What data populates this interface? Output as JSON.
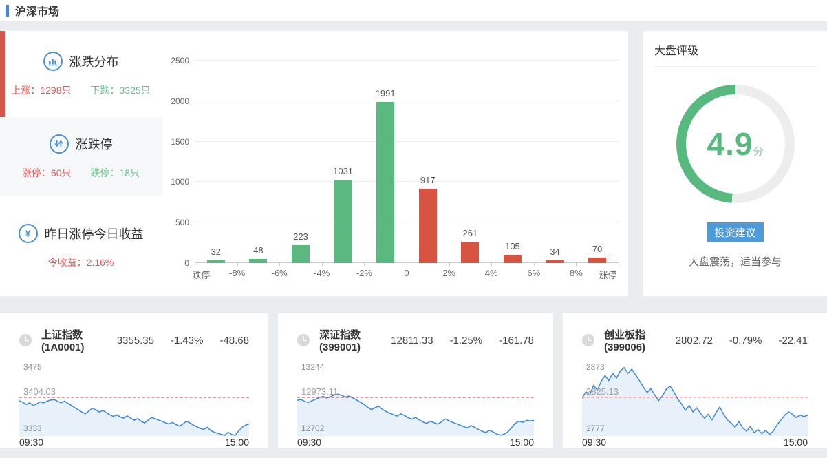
{
  "page": {
    "title": "沪深市场"
  },
  "colors": {
    "accent_blue": "#4a86c8",
    "accent_red": "#d4574e",
    "up_red": "#e15654",
    "down_green": "#67c08b",
    "bar_green": "#5bb87e",
    "bar_red": "#d75442",
    "line_blue": "#3a87d2",
    "area_blue": "#e8f1fa",
    "ref_red": "#d9534f",
    "gauge_green": "#57b97e",
    "gauge_track": "#ededed",
    "button_blue": "#4f9bd9"
  },
  "left_panel": {
    "sections": [
      {
        "icon": "bar-chart-icon",
        "title": "涨跌分布",
        "stats": [
          {
            "text": "上涨：1298只",
            "tone": "up"
          },
          {
            "text": "下跌：3325只",
            "tone": "down"
          }
        ]
      },
      {
        "icon": "up-down-arrows-icon",
        "title": "涨跌停",
        "stats": [
          {
            "text": "涨停：60只",
            "tone": "up"
          },
          {
            "text": "跌停：18只",
            "tone": "down"
          }
        ]
      },
      {
        "icon": "yen-icon",
        "title": "昨日涨停今日收益",
        "stats": [
          {
            "text": "今收益：2.16%",
            "tone": "up"
          }
        ]
      }
    ]
  },
  "rating_panel": {
    "title": "大盘评级",
    "score": "4.9",
    "score_max": 10,
    "score_unit": "分",
    "button_label": "投资建议",
    "advice": "大盘震荡，适当参与"
  },
  "index_cards": [
    {
      "name": "上证指数(1A0001)",
      "price": "3355.35",
      "change_pct": "-1.43%",
      "change_amt": "-48.68"
    },
    {
      "name": "深证指数(399001)",
      "price": "12811.33",
      "change_pct": "-1.25%",
      "change_amt": "-161.78"
    },
    {
      "name": "创业板指(399006)",
      "price": "2802.72",
      "change_pct": "-0.79%",
      "change_amt": "-22.41"
    }
  ],
  "chart_data": [
    {
      "type": "bar",
      "title": "涨跌分布",
      "boundary_labels": [
        "跌停",
        "-8%",
        "-6%",
        "-4%",
        "-2%",
        "0",
        "2%",
        "4%",
        "6%",
        "8%",
        "涨停"
      ],
      "values": [
        32,
        48,
        223,
        1031,
        1991,
        917,
        261,
        105,
        34,
        70
      ],
      "bar_colors": [
        "#5bb87e",
        "#5bb87e",
        "#5bb87e",
        "#5bb87e",
        "#5bb87e",
        "#d75442",
        "#d75442",
        "#d75442",
        "#d75442",
        "#d75442"
      ],
      "ylim": [
        0,
        2500
      ],
      "yticks": [
        0,
        500,
        1000,
        1500,
        2000,
        2500
      ],
      "grid": true,
      "legend": false
    },
    {
      "type": "line",
      "name": "上证指数(1A0001)",
      "ymax": 3475,
      "ymax_label": "3475",
      "ymin": 3333,
      "ymin_label": "3333",
      "ref": 3404.03,
      "ref_label": "3404.03",
      "x_labels": [
        "09:30",
        "15:00"
      ],
      "values": [
        3398,
        3395,
        3391,
        3394,
        3389,
        3392,
        3396,
        3394,
        3397,
        3399,
        3400,
        3397,
        3394,
        3397,
        3393,
        3389,
        3385,
        3381,
        3377,
        3374,
        3379,
        3384,
        3381,
        3377,
        3380,
        3376,
        3372,
        3369,
        3372,
        3368,
        3366,
        3370,
        3366,
        3362,
        3365,
        3360,
        3357,
        3362,
        3367,
        3365,
        3362,
        3360,
        3357,
        3355,
        3358,
        3354,
        3351,
        3355,
        3360,
        3357,
        3353,
        3350,
        3347,
        3345,
        3349,
        3343,
        3340,
        3338,
        3336,
        3334,
        3340,
        3336,
        3334,
        3342,
        3349,
        3353,
        3355
      ]
    },
    {
      "type": "line",
      "name": "深证指数(399001)",
      "ymax": 13244,
      "ymax_label": "13244",
      "ymin": 12702,
      "ymin_label": "12702",
      "ref": 12973.11,
      "ref_label": "12973.11",
      "x_labels": [
        "09:30",
        "15:00"
      ],
      "values": [
        12952,
        12958,
        12945,
        12938,
        12950,
        12960,
        12972,
        12980,
        12968,
        12978,
        12990,
        12996,
        12988,
        12975,
        12982,
        12970,
        12955,
        12940,
        12925,
        12905,
        12888,
        12900,
        12912,
        12890,
        12875,
        12862,
        12852,
        12842,
        12858,
        12846,
        12830,
        12820,
        12832,
        12815,
        12800,
        12790,
        12806,
        12795,
        12785,
        12800,
        12822,
        12810,
        12798,
        12788,
        12778,
        12768,
        12758,
        12775,
        12762,
        12748,
        12736,
        12726,
        12742,
        12730,
        12715,
        12708,
        12716,
        12732,
        12762,
        12792,
        12806,
        12798,
        12812,
        12808,
        12811
      ]
    },
    {
      "type": "line",
      "name": "创业板指(399006)",
      "ymax": 2873,
      "ymax_label": "2873",
      "ymin": 2777,
      "ymin_label": "2777",
      "ref": 2825.13,
      "ref_label": "2825.13",
      "x_labels": [
        "09:30",
        "15:00"
      ],
      "values": [
        2824,
        2832,
        2828,
        2840,
        2834,
        2845,
        2852,
        2846,
        2855,
        2849,
        2858,
        2862,
        2855,
        2860,
        2853,
        2846,
        2838,
        2831,
        2836,
        2828,
        2821,
        2827,
        2835,
        2839,
        2832,
        2823,
        2817,
        2809,
        2815,
        2807,
        2812,
        2805,
        2799,
        2804,
        2797,
        2806,
        2813,
        2804,
        2797,
        2793,
        2788,
        2795,
        2787,
        2783,
        2789,
        2781,
        2785,
        2780,
        2784,
        2779,
        2783,
        2791,
        2797,
        2803,
        2807,
        2804,
        2800,
        2803,
        2801,
        2803
      ]
    }
  ]
}
